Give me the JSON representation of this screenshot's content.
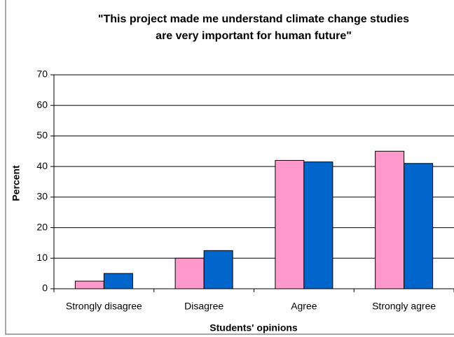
{
  "chart_data": {
    "type": "bar",
    "title": [
      "\"This project made me understand climate change studies",
      "are very important for human future\""
    ],
    "x_label": "Students' opinions",
    "y_label": "Percent",
    "categories": [
      "Strongly disagree",
      "Disagree",
      "Agree",
      "Strongly agree"
    ],
    "series": [
      {
        "color": "#ff99cc",
        "values": [
          2.5,
          10,
          42,
          45
        ]
      },
      {
        "color": "#0066cc",
        "values": [
          5,
          12.5,
          41.5,
          41
        ]
      }
    ],
    "ylim": [
      0,
      70
    ],
    "yticks": [
      0,
      10,
      20,
      30,
      40,
      50,
      60,
      70
    ],
    "grid": true
  }
}
